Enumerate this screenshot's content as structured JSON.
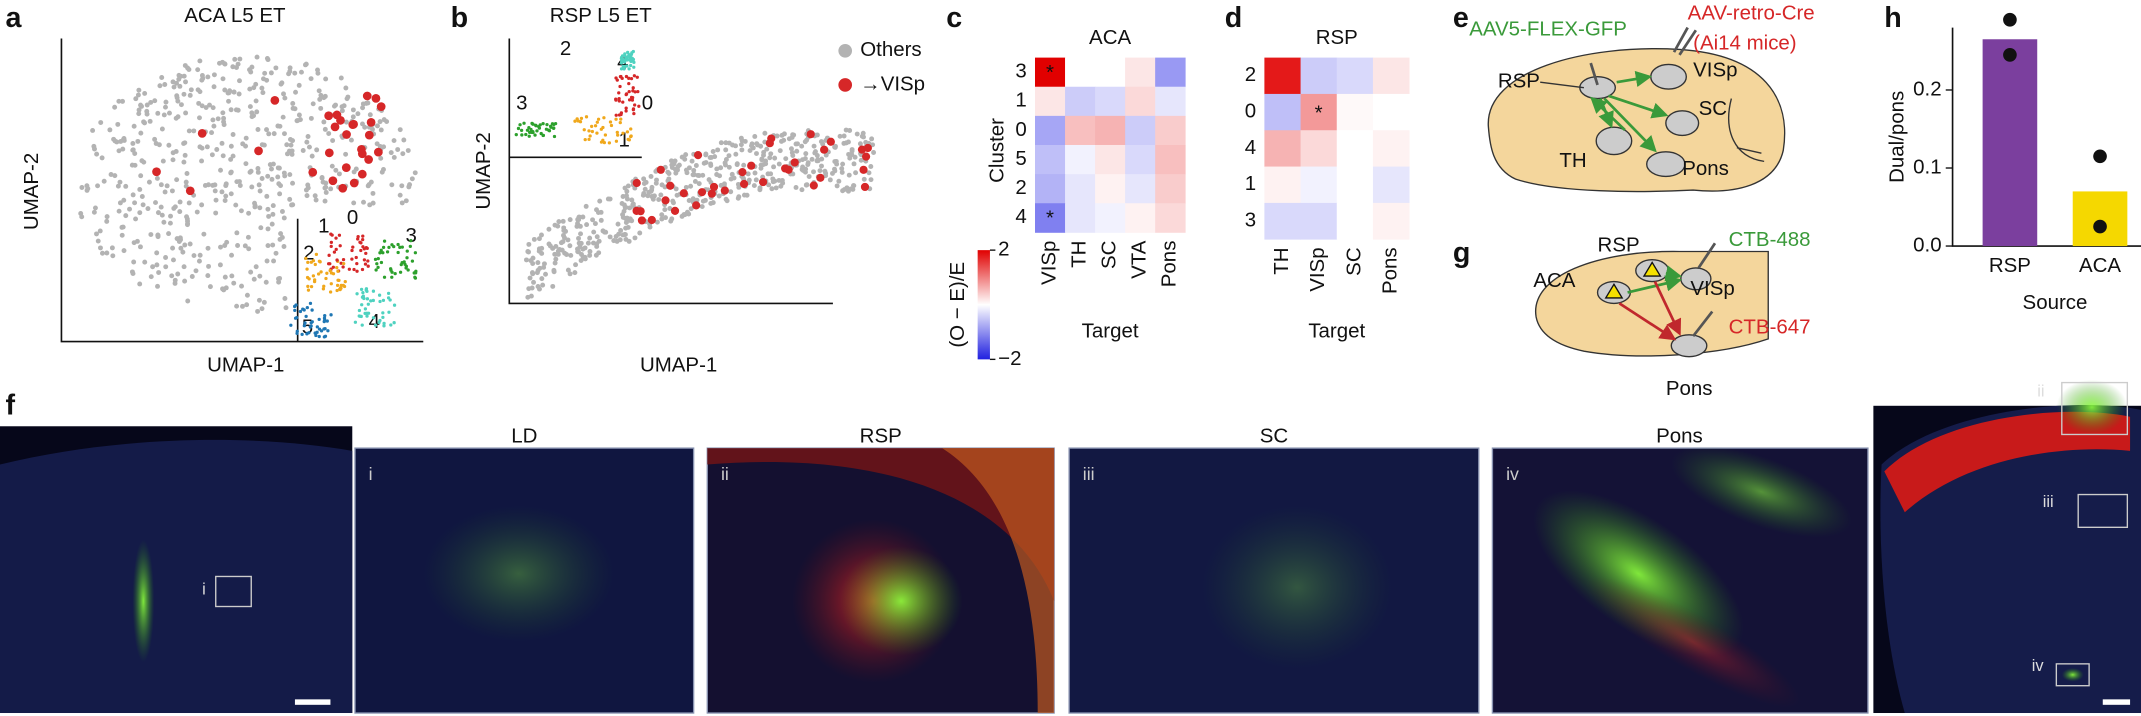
{
  "panels": {
    "letters": [
      "a",
      "b",
      "c",
      "d",
      "e",
      "f",
      "g",
      "h"
    ],
    "a": {
      "title": "ACA L5 ET",
      "x_label": "UMAP-1",
      "y_label": "UMAP-2",
      "inset_labels": [
        "1",
        "0",
        "3",
        "2",
        "4",
        "5"
      ]
    },
    "b": {
      "title": "RSP L5 ET",
      "x_label": "UMAP-1",
      "y_label": "UMAP-2",
      "inset_labels": [
        "2",
        "4",
        "3",
        "0",
        "1"
      ],
      "legend": [
        {
          "label": "Others",
          "color": "#b3b3b3"
        },
        {
          "label": "→VISp",
          "color": "#d62728"
        }
      ]
    },
    "e": {
      "injection_green": "AAV5-FLEX-GFP",
      "injection_red_1": "AAV-retro-Cre",
      "injection_red_2": "(Ai14 mice)",
      "regions": [
        "RSP",
        "VISp",
        "SC",
        "TH",
        "Pons"
      ]
    },
    "g": {
      "regions": [
        "ACA",
        "RSP",
        "VISp",
        "Pons"
      ],
      "tracer_green": "CTB-488",
      "tracer_red": "CTB-647"
    },
    "f": {
      "titles": [
        "LD",
        "RSP",
        "SC",
        "Pons"
      ],
      "numerals": [
        "i",
        "ii",
        "iii",
        "iv"
      ]
    }
  },
  "chart_data": [
    {
      "type": "heatmap",
      "title": "ACA",
      "y_label": "Cluster",
      "x_label": "Target",
      "categories": [
        "VISp",
        "TH",
        "SC",
        "VTA",
        "Pons"
      ],
      "rows": [
        "3",
        "1",
        "0",
        "5",
        "2",
        "4"
      ],
      "values": [
        [
          2.0,
          0.0,
          0.0,
          0.2,
          -0.8
        ],
        [
          0.2,
          -0.4,
          -0.3,
          0.3,
          -0.2
        ],
        [
          -0.7,
          0.5,
          0.6,
          -0.4,
          0.4
        ],
        [
          -0.5,
          -0.1,
          0.2,
          -0.3,
          0.5
        ],
        [
          -0.6,
          -0.2,
          0.1,
          -0.2,
          0.4
        ],
        [
          -1.0,
          -0.2,
          -0.1,
          0.1,
          0.3
        ]
      ],
      "stars": [
        [
          "*",
          null,
          null,
          null,
          null
        ],
        [
          null,
          null,
          null,
          null,
          null
        ],
        [
          null,
          null,
          null,
          null,
          null
        ],
        [
          null,
          null,
          null,
          null,
          null
        ],
        [
          null,
          null,
          null,
          null,
          null
        ],
        [
          "*",
          null,
          null,
          null,
          null
        ]
      ],
      "colorbar": {
        "label": "(O − E)/E",
        "clim": [
          -2,
          2
        ],
        "ticks": [
          2,
          {
            "value": -2,
            "label": "−2"
          }
        ]
      }
    },
    {
      "type": "heatmap",
      "title": "RSP",
      "x_label": "Target",
      "categories": [
        "TH",
        "VISp",
        "SC",
        "Pons"
      ],
      "rows": [
        "2",
        "0",
        "4",
        "1",
        "3"
      ],
      "values": [
        [
          1.8,
          -0.4,
          -0.3,
          0.2
        ],
        [
          -0.5,
          0.8,
          0.05,
          0.0
        ],
        [
          0.6,
          0.3,
          0.0,
          0.1
        ],
        [
          0.1,
          -0.1,
          0.0,
          -0.2
        ],
        [
          -0.3,
          -0.3,
          0.0,
          0.1
        ]
      ],
      "stars": [
        [
          null,
          null,
          null,
          null
        ],
        [
          null,
          "*",
          null,
          null
        ],
        [
          null,
          null,
          null,
          null
        ],
        [
          null,
          null,
          null,
          null
        ],
        [
          null,
          null,
          null,
          null
        ]
      ]
    },
    {
      "type": "bar",
      "y_label": "Dual/pons",
      "x_label": "Source",
      "categories": [
        "RSP",
        "ACA"
      ],
      "values": [
        0.265,
        0.07
      ],
      "colors": [
        "#7b3f9e",
        "#f5d800"
      ],
      "points": [
        [
          0.29,
          0.245
        ],
        [
          0.115,
          0.025
        ]
      ],
      "ylim": [
        0,
        0.28
      ],
      "yticks": [
        {
          "value": 0,
          "label": "0.0"
        },
        0.1,
        0.2
      ]
    }
  ]
}
